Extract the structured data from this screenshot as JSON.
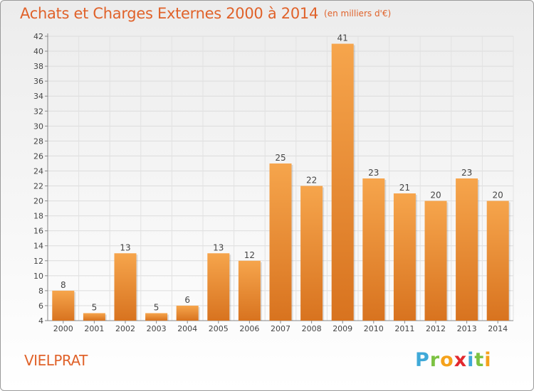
{
  "header": {
    "title": "Achats et Charges Externes 2000 à 2014",
    "unit": "(en milliers d'€)"
  },
  "footer": {
    "place": "VIELPRAT",
    "logo_letters": [
      "P",
      "r",
      "o",
      "x",
      "i",
      "t",
      "i"
    ],
    "logo_colors": [
      "#3fa9d8",
      "#7cc242",
      "#f5a21b",
      "#e2292f",
      "#3fa9d8",
      "#7cc242",
      "#f5a21b"
    ]
  },
  "chart_data": {
    "type": "bar",
    "title": "Achats et Charges Externes 2000 à 2014",
    "unit": "(en milliers d'€)",
    "categories": [
      "2000",
      "2001",
      "2002",
      "2003",
      "2004",
      "2005",
      "2006",
      "2007",
      "2008",
      "2009",
      "2010",
      "2011",
      "2012",
      "2013",
      "2014"
    ],
    "values": [
      8,
      5,
      13,
      5,
      6,
      13,
      12,
      25,
      22,
      41,
      23,
      21,
      20,
      23,
      20
    ],
    "ylim": [
      4,
      42
    ],
    "yticks": [
      4,
      6,
      8,
      10,
      12,
      14,
      16,
      18,
      20,
      22,
      24,
      26,
      28,
      30,
      32,
      34,
      36,
      38,
      40,
      42
    ],
    "grid": true,
    "colors": {
      "bar_light": "#f6a54c",
      "bar_dark": "#d8731f",
      "accent": "#e0622a"
    }
  }
}
